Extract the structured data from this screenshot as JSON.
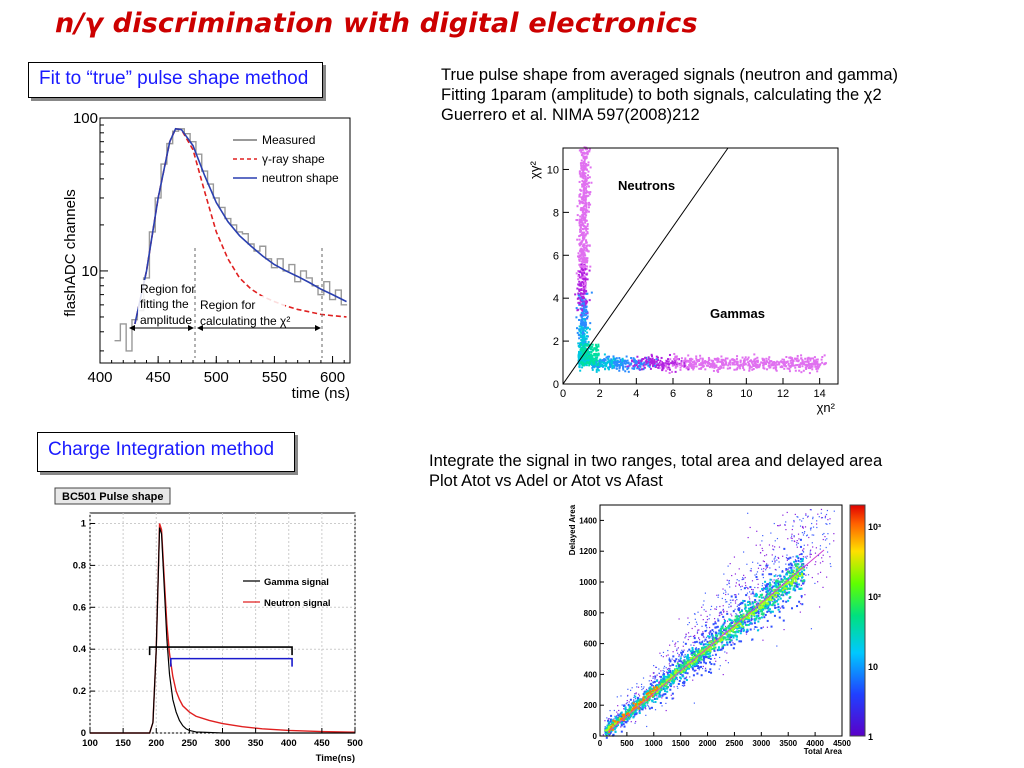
{
  "slide": {
    "title": "n/γ discrimination with digital electronics",
    "fit_box": "Fit to “true” pulse shape method",
    "charge_box": "Charge Integration method",
    "fit_desc": [
      "True pulse shape from averaged signals (neutron and gamma)",
      "Fitting 1param (amplitude) to both signals, calculating the χ2",
      "Guerrero et al. NIMA 597(2008)212"
    ],
    "charge_desc": [
      "Integrate the signal in two ranges, total area and delayed area",
      "Plot Atot vs Adel or Atot vs Afast"
    ]
  },
  "colors": {
    "title": "#cc0000",
    "box_text": "#1a1aff",
    "gamma_shape": "#e02020",
    "neutron_shape": "#2a3fb0",
    "measured": "#999999"
  },
  "chart_data": [
    {
      "type": "line",
      "ylabel": "flashADC channels",
      "xlabel": "time (ns)",
      "xlim": [
        400,
        615
      ],
      "ylim": [
        2.5,
        100
      ],
      "yscale": "log",
      "x_ticks": [
        "400",
        "450",
        "500",
        "550",
        "600"
      ],
      "y_ticks": [
        "10",
        "100"
      ],
      "legend": [
        "Measured",
        "γ-ray shape",
        "neutron shape"
      ],
      "legend_position": "top-right",
      "annotations": [
        "Region for fitting the amplitude",
        "Region for calculating the χ²"
      ],
      "series": [
        {
          "name": "neutron shape",
          "x": [
            430,
            440,
            450,
            460,
            465,
            470,
            480,
            490,
            500,
            510,
            520,
            530,
            540,
            550,
            560,
            570,
            580,
            590,
            600,
            612
          ],
          "y": [
            4.5,
            10,
            30,
            70,
            85,
            84,
            66,
            42,
            28,
            21,
            17,
            14.5,
            12.5,
            11,
            10,
            9.2,
            8.4,
            7.6,
            7,
            6.3
          ]
        },
        {
          "name": "γ-ray shape",
          "x": [
            430,
            440,
            450,
            460,
            465,
            470,
            480,
            490,
            500,
            510,
            520,
            530,
            540,
            550,
            560,
            570,
            580,
            590,
            600,
            612
          ],
          "y": [
            4.5,
            10,
            30,
            70,
            85,
            84,
            62,
            33,
            18,
            12,
            9,
            7.6,
            6.8,
            6.3,
            5.9,
            5.6,
            5.4,
            5.2,
            5.1,
            5.0
          ]
        },
        {
          "name": "Measured",
          "x": [
            415,
            420,
            425,
            430,
            435,
            440,
            445,
            450,
            455,
            460,
            465,
            470,
            475,
            480,
            485,
            490,
            495,
            500,
            505,
            510,
            515,
            520,
            525,
            530,
            535,
            540,
            545,
            550,
            555,
            560,
            565,
            570,
            575,
            580,
            585,
            590,
            595,
            600,
            605,
            610
          ],
          "y": [
            3.5,
            4.5,
            3,
            4.8,
            5.5,
            9,
            18,
            30,
            50,
            68,
            82,
            85,
            79,
            70,
            58,
            45,
            37,
            30,
            26,
            22,
            20,
            18,
            17.5,
            15,
            13.5,
            14.5,
            12,
            10.5,
            12,
            10,
            11,
            8.5,
            10,
            9,
            8,
            7,
            8.5,
            6.5,
            7.5,
            6
          ]
        }
      ]
    },
    {
      "type": "scatter",
      "xlabel": "χn²",
      "ylabel": "χγ²",
      "xlim": [
        0,
        15
      ],
      "ylim": [
        0,
        11
      ],
      "x_ticks": [
        "0",
        "2",
        "4",
        "6",
        "8",
        "10",
        "12",
        "14"
      ],
      "y_ticks": [
        "0",
        "2",
        "4",
        "6",
        "8",
        "10"
      ],
      "annotations": [
        "Neutrons",
        "Gammas"
      ],
      "diagonal_line": {
        "x": [
          0,
          9
        ],
        "y": [
          0,
          11
        ]
      }
    },
    {
      "type": "line",
      "title": "BC501 Pulse shape",
      "xlabel": "Time(ns)",
      "xlim": [
        100,
        500
      ],
      "ylim": [
        0,
        1.05
      ],
      "x_ticks": [
        "100",
        "150",
        "200",
        "250",
        "300",
        "350",
        "400",
        "450",
        "500"
      ],
      "y_ticks": [
        "0",
        "0.2",
        "0.4",
        "0.6",
        "0.8",
        "1"
      ],
      "legend": [
        "Gamma signal",
        "Neutron signal"
      ],
      "legend_position": "center-right",
      "series": [
        {
          "name": "Gamma signal",
          "x": [
            100,
            190,
            195,
            200,
            203,
            205,
            208,
            212,
            216,
            220,
            225,
            230,
            235,
            240,
            245,
            250,
            260,
            300,
            400,
            500
          ],
          "y": [
            0,
            0,
            0.05,
            0.4,
            0.75,
            0.98,
            0.95,
            0.7,
            0.45,
            0.28,
            0.16,
            0.1,
            0.06,
            0.035,
            0.02,
            0.012,
            0.005,
            0,
            0,
            0
          ]
        },
        {
          "name": "Neutron signal",
          "x": [
            100,
            190,
            195,
            200,
            203,
            205,
            208,
            212,
            216,
            220,
            225,
            230,
            235,
            240,
            250,
            260,
            280,
            300,
            330,
            360,
            400,
            450,
            500
          ],
          "y": [
            0,
            0,
            0.05,
            0.4,
            0.75,
            1.0,
            0.97,
            0.74,
            0.52,
            0.38,
            0.27,
            0.2,
            0.16,
            0.13,
            0.1,
            0.08,
            0.06,
            0.045,
            0.03,
            0.02,
            0.012,
            0.007,
            0.004
          ]
        }
      ],
      "brackets": [
        {
          "x": [
            190,
            405
          ],
          "level": 0.41,
          "color": "#000000"
        },
        {
          "x": [
            222,
            405
          ],
          "level": 0.355,
          "color": "#1a1acc"
        }
      ]
    },
    {
      "type": "heatmap",
      "xlabel": "Total Area",
      "ylabel": "Delayed Area",
      "xlim": [
        0,
        4500
      ],
      "ylim": [
        0,
        1500
      ],
      "x_ticks": [
        "0",
        "500",
        "1000",
        "1500",
        "2000",
        "2500",
        "3000",
        "3500",
        "4000",
        "4500"
      ],
      "y_ticks": [
        "0",
        "200",
        "400",
        "600",
        "800",
        "1000",
        "1200",
        "1400"
      ],
      "colorbar_ticks": [
        "1",
        "10",
        "10²",
        "10³"
      ],
      "colorbar_scale": "log"
    }
  ]
}
